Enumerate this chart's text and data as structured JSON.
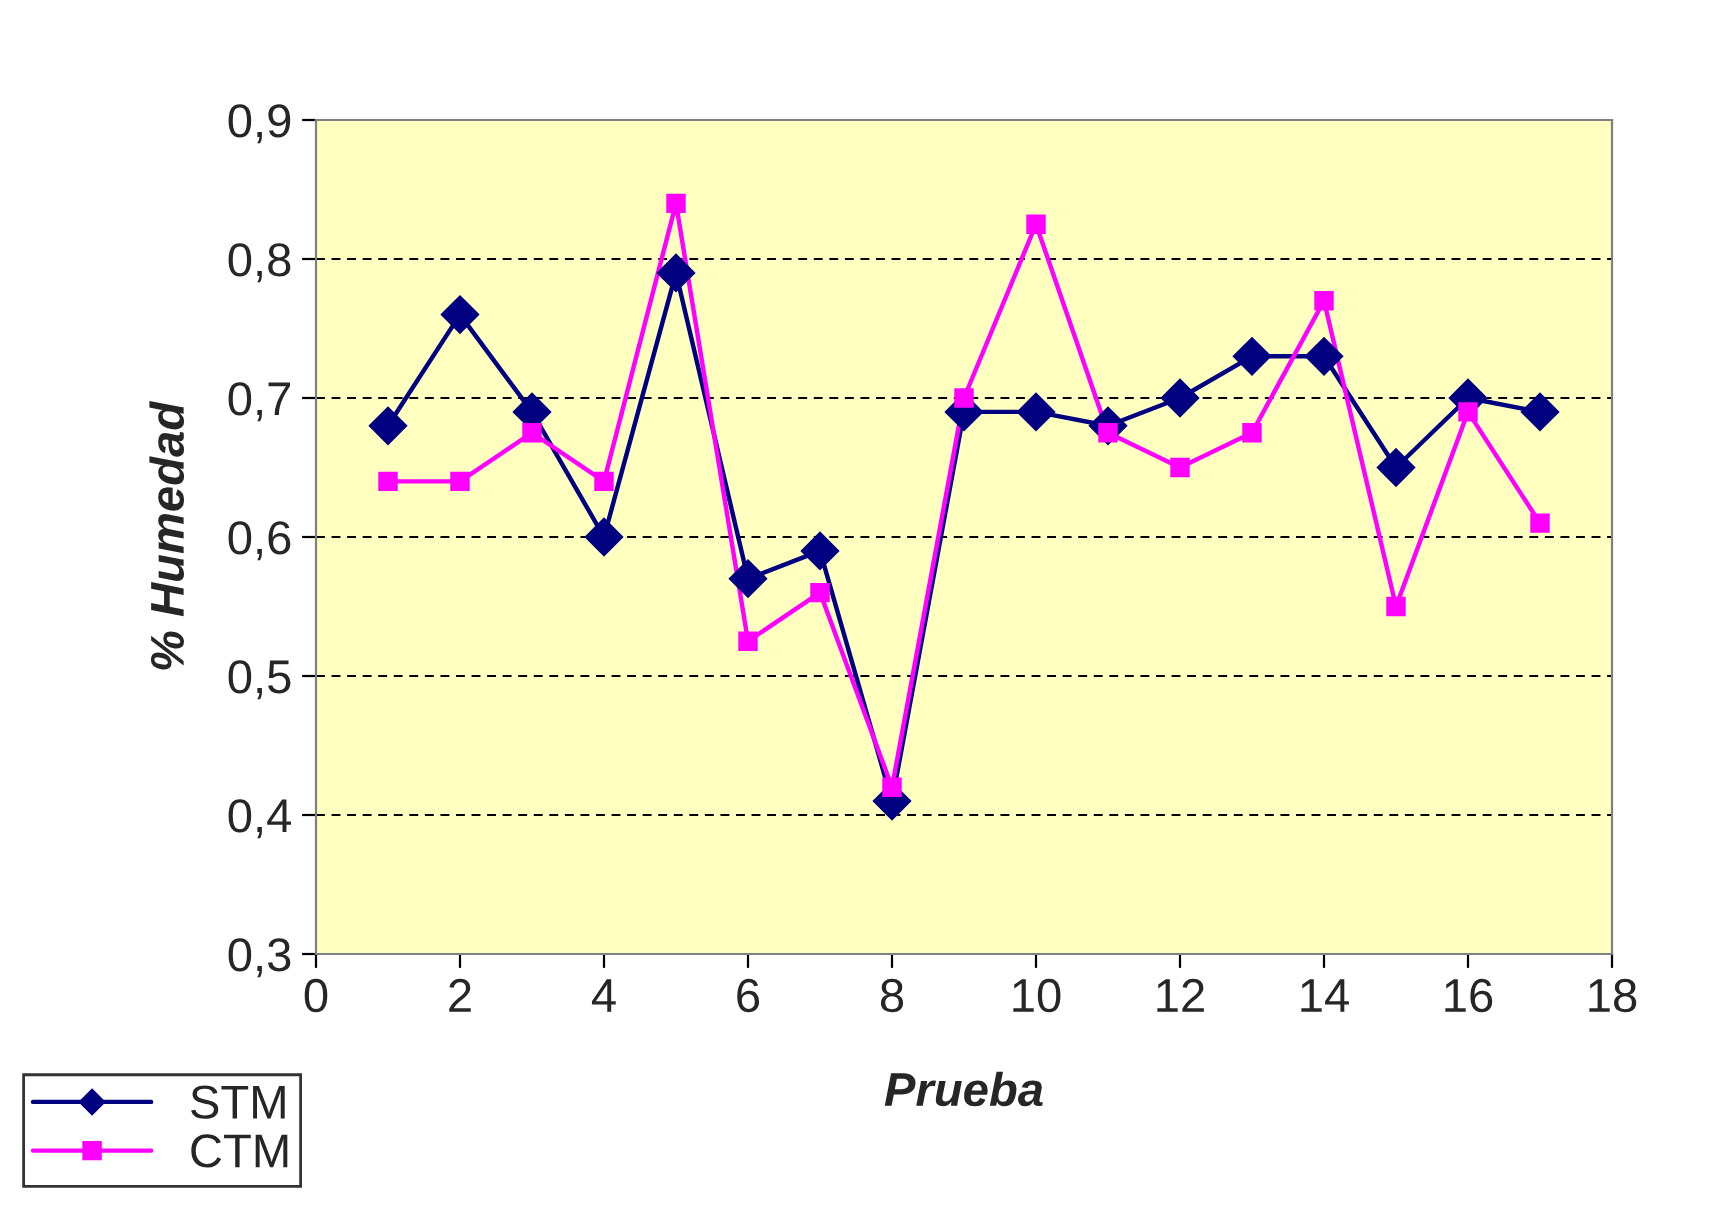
{
  "chart_data": {
    "type": "line",
    "xlabel": "Prueba",
    "ylabel": "% Humedad",
    "xlim": [
      0,
      18
    ],
    "xticks": [
      0,
      2,
      4,
      6,
      8,
      10,
      12,
      14,
      16,
      18
    ],
    "ylim": [
      0.3,
      0.9
    ],
    "yticks": [
      {
        "value": 0.3,
        "label": "0,3"
      },
      {
        "value": 0.4,
        "label": "0,4"
      },
      {
        "value": 0.5,
        "label": "0,5"
      },
      {
        "value": 0.6,
        "label": "0,6"
      },
      {
        "value": 0.7,
        "label": "0,7"
      },
      {
        "value": 0.8,
        "label": "0,8"
      },
      {
        "value": 0.9,
        "label": "0,9"
      }
    ],
    "x": [
      1,
      2,
      3,
      4,
      5,
      6,
      7,
      8,
      9,
      10,
      11,
      12,
      13,
      14,
      15,
      16,
      17
    ],
    "series": [
      {
        "name": "STM",
        "color": "#000080",
        "marker": "diamond",
        "values": [
          0.68,
          0.76,
          0.69,
          0.6,
          0.79,
          0.57,
          0.59,
          0.41,
          0.69,
          0.69,
          0.68,
          0.7,
          0.73,
          0.73,
          0.65,
          0.7,
          0.69
        ]
      },
      {
        "name": "CTM",
        "color": "#ff00ff",
        "marker": "square",
        "values": [
          0.64,
          0.64,
          0.675,
          0.64,
          0.84,
          0.525,
          0.56,
          0.42,
          0.7,
          0.825,
          0.675,
          0.65,
          0.675,
          0.77,
          0.55,
          0.69,
          0.61
        ]
      }
    ],
    "grid": "y",
    "legend": "bottom left",
    "line_style": "solid"
  }
}
